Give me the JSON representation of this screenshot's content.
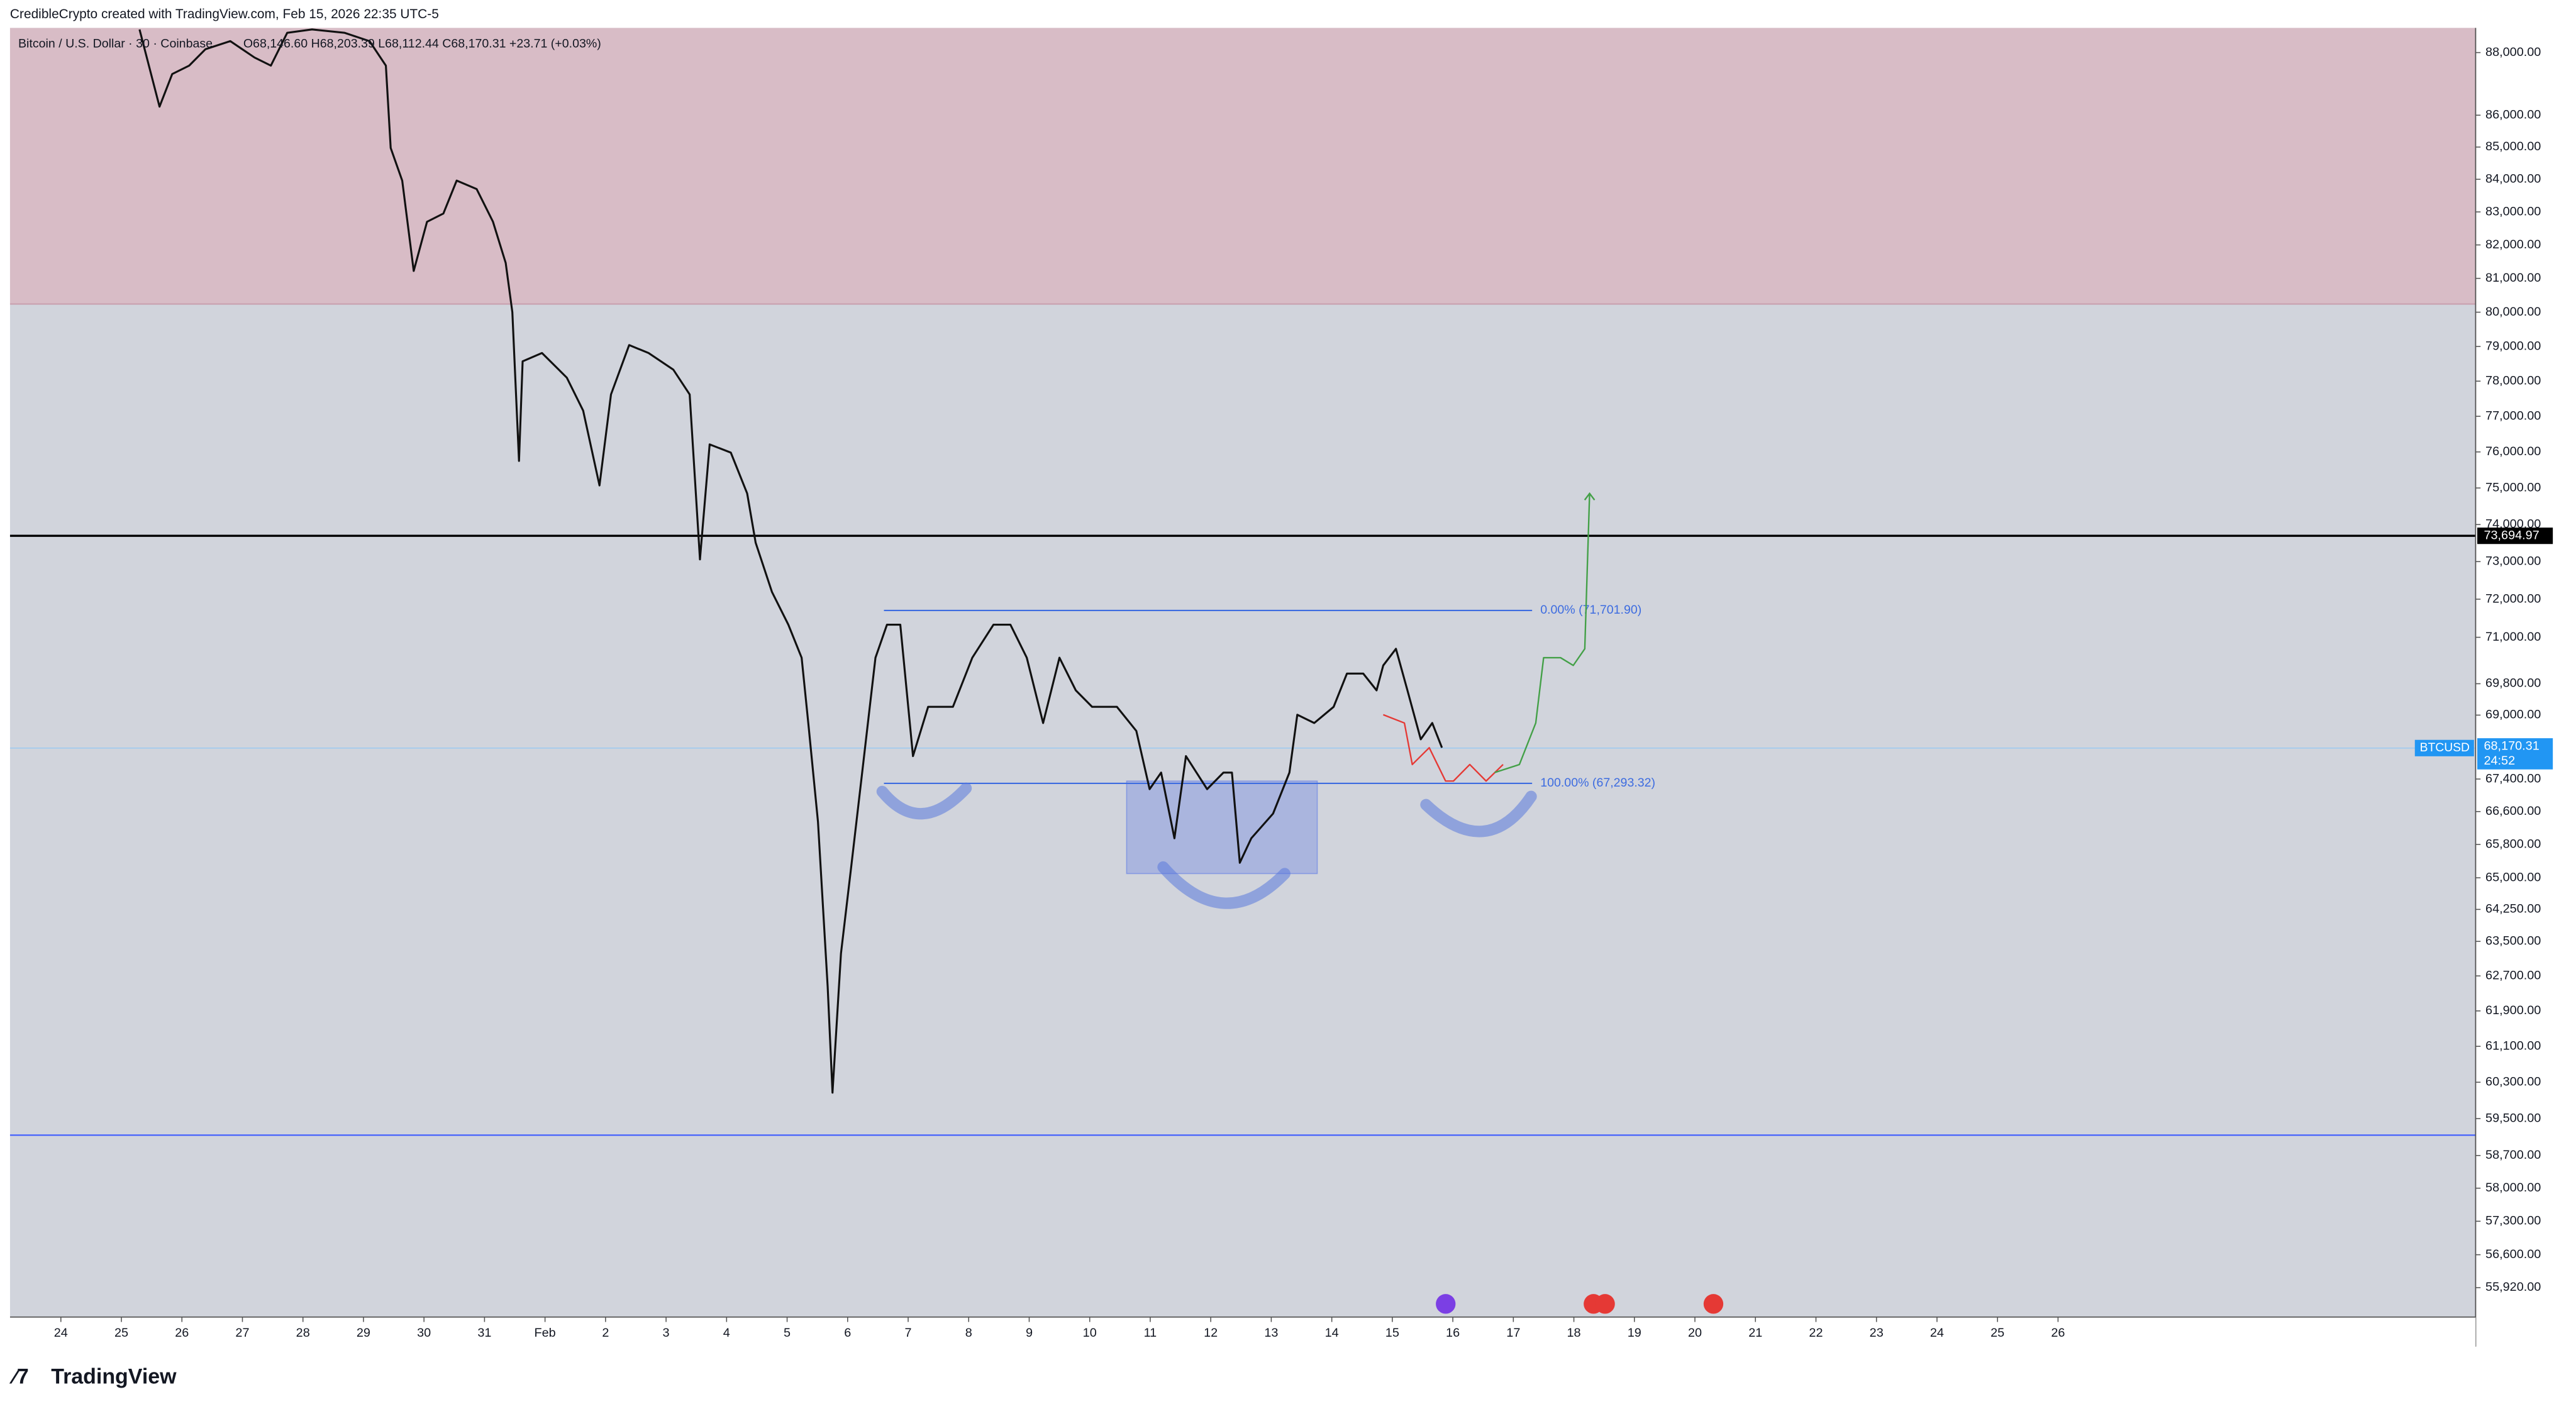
{
  "chart_data": {
    "type": "line",
    "attribution": "CredibleCrypto created with TradingView.com, Feb 15, 2026 22:35 UTC-5",
    "symbol_text": "Bitcoin / U.S. Dollar · 30 · Coinbase",
    "ohlc_text": "O68,146.60 H68,203.39 L68,112.44 C68,170.31 +23.71 (+0.03%)",
    "brand": "TradingView",
    "log_scale": true,
    "ylim": [
      55320,
      88800
    ],
    "xlim": [
      -0.84,
      39.9
    ],
    "yticks": [
      {
        "value": 88000,
        "label": "88,000.00"
      },
      {
        "value": 86000,
        "label": "86,000.00"
      },
      {
        "value": 85000,
        "label": "85,000.00"
      },
      {
        "value": 84000,
        "label": "84,000.00"
      },
      {
        "value": 83000,
        "label": "83,000.00"
      },
      {
        "value": 82000,
        "label": "82,000.00"
      },
      {
        "value": 81000,
        "label": "81,000.00"
      },
      {
        "value": 80000,
        "label": "80,000.00"
      },
      {
        "value": 79000,
        "label": "79,000.00"
      },
      {
        "value": 78000,
        "label": "78,000.00"
      },
      {
        "value": 77000,
        "label": "77,000.00"
      },
      {
        "value": 76000,
        "label": "76,000.00"
      },
      {
        "value": 75000,
        "label": "75,000.00"
      },
      {
        "value": 74000,
        "label": "74,000.00"
      },
      {
        "value": 73000,
        "label": "73,000.00"
      },
      {
        "value": 72000,
        "label": "72,000.00"
      },
      {
        "value": 71000,
        "label": "71,000.00"
      },
      {
        "value": 69800,
        "label": "69,800.00"
      },
      {
        "value": 69000,
        "label": "69,000.00"
      },
      {
        "value": 67400,
        "label": "67,400.00"
      },
      {
        "value": 66600,
        "label": "66,600.00"
      },
      {
        "value": 65800,
        "label": "65,800.00"
      },
      {
        "value": 65000,
        "label": "65,000.00"
      },
      {
        "value": 64250,
        "label": "64,250.00"
      },
      {
        "value": 63500,
        "label": "63,500.00"
      },
      {
        "value": 62700,
        "label": "62,700.00"
      },
      {
        "value": 61900,
        "label": "61,900.00"
      },
      {
        "value": 61100,
        "label": "61,100.00"
      },
      {
        "value": 60300,
        "label": "60,300.00"
      },
      {
        "value": 59500,
        "label": "59,500.00"
      },
      {
        "value": 58700,
        "label": "58,700.00"
      },
      {
        "value": 58000,
        "label": "58,000.00"
      },
      {
        "value": 57300,
        "label": "57,300.00"
      },
      {
        "value": 56600,
        "label": "56,600.00"
      },
      {
        "value": 55920,
        "label": "55,920.00"
      }
    ],
    "xticks": [
      {
        "value": 0,
        "label": "24"
      },
      {
        "value": 1,
        "label": "25"
      },
      {
        "value": 2,
        "label": "26"
      },
      {
        "value": 3,
        "label": "27"
      },
      {
        "value": 4,
        "label": "28"
      },
      {
        "value": 5,
        "label": "29"
      },
      {
        "value": 6,
        "label": "30"
      },
      {
        "value": 7,
        "label": "31"
      },
      {
        "value": 8,
        "label": "Feb"
      },
      {
        "value": 9,
        "label": "2"
      },
      {
        "value": 10,
        "label": "3"
      },
      {
        "value": 11,
        "label": "4"
      },
      {
        "value": 12,
        "label": "5"
      },
      {
        "value": 13,
        "label": "6"
      },
      {
        "value": 14,
        "label": "7"
      },
      {
        "value": 15,
        "label": "8"
      },
      {
        "value": 16,
        "label": "9"
      },
      {
        "value": 17,
        "label": "10"
      },
      {
        "value": 18,
        "label": "11"
      },
      {
        "value": 19,
        "label": "12"
      },
      {
        "value": 20,
        "label": "13"
      },
      {
        "value": 21,
        "label": "14"
      },
      {
        "value": 22,
        "label": "15"
      },
      {
        "value": 23,
        "label": "16"
      },
      {
        "value": 24,
        "label": "17"
      },
      {
        "value": 25,
        "label": "18"
      },
      {
        "value": 26,
        "label": "19"
      },
      {
        "value": 27,
        "label": "20"
      },
      {
        "value": 28,
        "label": "21"
      },
      {
        "value": 29,
        "label": "22"
      },
      {
        "value": 30,
        "label": "23"
      },
      {
        "value": 31,
        "label": "24"
      },
      {
        "value": 32,
        "label": "25"
      },
      {
        "value": 33,
        "label": "26"
      }
    ],
    "resistance_zone": {
      "from": 80240,
      "color": "#d8bcc6"
    },
    "background_color": "#d1d4dc",
    "price": {
      "color": "#111111",
      "x": [
        1.3,
        1.63,
        1.84,
        2.12,
        2.39,
        2.8,
        3.2,
        3.47,
        3.74,
        4.15,
        4.69,
        5.1,
        5.37,
        5.45,
        5.64,
        5.83,
        6.05,
        6.32,
        6.54,
        6.87,
        7.14,
        7.35,
        7.46,
        7.57,
        7.63,
        7.95,
        8.36,
        8.63,
        8.9,
        9.09,
        9.39,
        9.71,
        10.12,
        10.39,
        10.56,
        10.72,
        11.07,
        11.34,
        11.48,
        11.75,
        12.02,
        12.24,
        12.35,
        12.51,
        12.67,
        12.75,
        12.89,
        13.05,
        13.24,
        13.46,
        13.65,
        13.87,
        14.08,
        14.33,
        14.74,
        15.06,
        15.41,
        15.69,
        15.96,
        16.23,
        16.5,
        16.77,
        17.04,
        17.45,
        17.77,
        17.99,
        18.18,
        18.4,
        18.59,
        18.94,
        19.21,
        19.35,
        19.48,
        19.67,
        20.03,
        20.3,
        20.43,
        20.71,
        21.03,
        21.25,
        21.52,
        21.74,
        21.85,
        22.06,
        22.25,
        22.47,
        22.66,
        22.82
      ],
      "y": [
        88750,
        86270,
        87310,
        87580,
        88110,
        88370,
        87840,
        87580,
        88640,
        88750,
        88640,
        88370,
        87580,
        84970,
        83960,
        81220,
        82700,
        82950,
        83960,
        83700,
        82700,
        81460,
        80000,
        75750,
        78570,
        78810,
        78100,
        77160,
        75070,
        77620,
        79040,
        78810,
        78330,
        77620,
        73060,
        76210,
        75980,
        74850,
        73510,
        72190,
        71330,
        70470,
        68800,
        66350,
        62460,
        60070,
        63220,
        65150,
        67560,
        70470,
        71330,
        71330,
        67970,
        69210,
        69210,
        70470,
        71330,
        71330,
        70470,
        68800,
        70470,
        69630,
        69210,
        69210,
        68600,
        67150,
        67560,
        65950,
        67970,
        67150,
        67560,
        67560,
        65360,
        65950,
        66550,
        67560,
        69010,
        68800,
        69210,
        70060,
        70060,
        69630,
        70270,
        70700,
        69630,
        68390,
        68800,
        68180
      ]
    },
    "projections": [
      {
        "color": "#e53935",
        "x": [
          21.85,
          22.2,
          22.33,
          22.61,
          22.88,
          23.01,
          23.28,
          23.55,
          23.83
        ],
        "y": [
          69010,
          68800,
          67760,
          68180,
          67350,
          67350,
          67760,
          67350,
          67760
        ]
      },
      {
        "color": "#43a047",
        "x": [
          23.69,
          24.1,
          24.37,
          24.5,
          24.78,
          24.99,
          25.18,
          25.26
        ],
        "y": [
          67560,
          67760,
          68800,
          70470,
          70470,
          70270,
          70700,
          74850
        ]
      }
    ],
    "level": {
      "value": 73694.97,
      "label": "73,694.97",
      "color": "#000000"
    },
    "support_line": {
      "value": 59140,
      "color": "#3d5afe"
    },
    "fib_x": [
      13.6,
      24.31
    ],
    "fib_levels": [
      {
        "value": 71701.9,
        "label": "0.00% (71,701.90)"
      },
      {
        "value": 67293.32,
        "label": "100.00% (67,293.32)"
      }
    ],
    "fib_color": "#3d6ce0",
    "box": {
      "x": [
        17.61,
        20.76
      ],
      "y": [
        65100,
        67350
      ],
      "color": "rgba(80,110,230,0.3)"
    },
    "last_price": {
      "symbol": "BTCUSD",
      "value": 68170.31,
      "label": "68,170.31",
      "countdown": "24:52",
      "color": "#2196f3"
    }
  }
}
